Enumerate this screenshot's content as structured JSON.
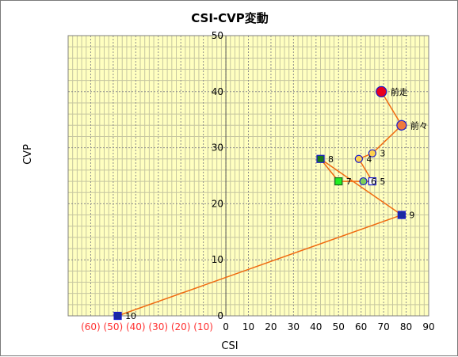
{
  "chart_data": {
    "type": "scatter",
    "title": "CSI-CVP変動",
    "xlabel": "CSI",
    "ylabel": "CVP",
    "xlim": [
      -70,
      90
    ],
    "ylim": [
      0,
      50
    ],
    "x_ticks": [
      -60,
      -50,
      -40,
      -30,
      -20,
      -10,
      0,
      10,
      20,
      30,
      40,
      50,
      60,
      70,
      80,
      90
    ],
    "x_tick_labels": [
      "(60)",
      "(50)",
      "(40)",
      "(30)",
      "(20)",
      "(10)",
      "0",
      "10",
      "20",
      "30",
      "40",
      "50",
      "60",
      "70",
      "80",
      "90"
    ],
    "y_ticks": [
      0,
      10,
      20,
      30,
      40,
      50
    ],
    "y_tick_labels": [
      "0",
      "10",
      "20",
      "30",
      "40",
      "50"
    ],
    "grid": true,
    "points": [
      {
        "label": "前走",
        "x": 69,
        "y": 40,
        "marker": "circle",
        "fill": "#e8001e",
        "stroke": "#1a1acc",
        "size": 6.5
      },
      {
        "label": "前々",
        "x": 78,
        "y": 34,
        "marker": "circle",
        "fill": "#f07a3c",
        "stroke": "#1a1acc",
        "size": 6
      },
      {
        "label": "3",
        "x": 65,
        "y": 29,
        "marker": "circle",
        "fill": "#ffd24d",
        "stroke": "#1a1acc",
        "size": 4.5
      },
      {
        "label": "4",
        "x": 59,
        "y": 28,
        "marker": "circle",
        "fill": "#ffd24d",
        "stroke": "#1a1acc",
        "size": 4.5
      },
      {
        "label": "5",
        "x": 65,
        "y": 24,
        "marker": "square",
        "fill": "#ffffff",
        "stroke": "#1a1acc",
        "size": 4.5
      },
      {
        "label": "6",
        "x": 61,
        "y": 24,
        "marker": "circle",
        "fill": "#7fcf5a",
        "stroke": "#1a1acc",
        "size": 4.5
      },
      {
        "label": "7",
        "x": 50,
        "y": 24,
        "marker": "square",
        "fill": "#22ee22",
        "stroke": "#1a6a1a",
        "size": 4.5
      },
      {
        "label": "8",
        "x": 42,
        "y": 28,
        "marker": "square",
        "fill": "#1a7a1a",
        "stroke": "#1a1acc",
        "size": 4.5
      },
      {
        "label": "9",
        "x": 78,
        "y": 18,
        "marker": "square",
        "fill": "#1a2aa0",
        "stroke": "#1a1acc",
        "size": 4.5
      },
      {
        "label": "10",
        "x": -48,
        "y": 0,
        "marker": "square",
        "fill": "#1a2aa0",
        "stroke": "#1a1acc",
        "size": 4.5
      }
    ],
    "line_color": "#f06a10",
    "colors": {
      "plot_bg": "#ffffc0",
      "grid_major": "#8c8c8c",
      "grid_minor": "#c6c6a0",
      "negative_tick": "#ff3030",
      "positive_tick": "#000000"
    }
  }
}
